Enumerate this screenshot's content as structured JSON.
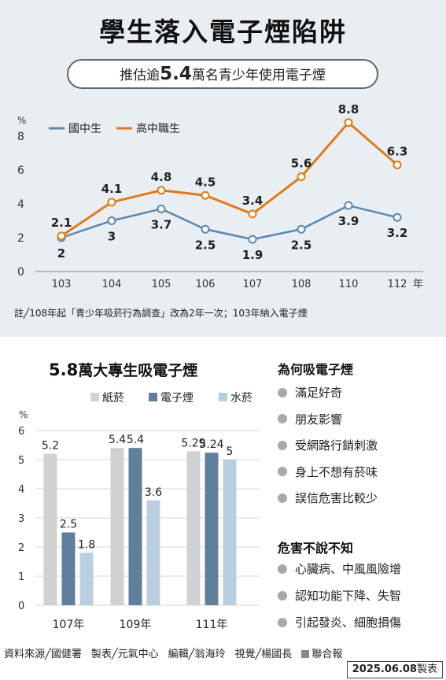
{
  "title": "學生落入電子煙陷阱",
  "subtitle": {
    "prefix": "推估逾",
    "number": "5.4",
    "suffix": "萬名青少年使用電子煙"
  },
  "note": "註╱108年起「青少年吸菸行為調查」改為2年一次；103年納入電子煙",
  "colors": {
    "junior": "#5b88b3",
    "senior": "#e07b1b",
    "paper_cig": "#cfd1d3",
    "e_cig": "#5f7f9c",
    "hookah": "#b9cfe0"
  },
  "chart_data": [
    {
      "type": "line",
      "unit_label": "%",
      "categories": [
        "103",
        "104",
        "105",
        "106",
        "107",
        "108",
        "110",
        "112"
      ],
      "x_suffix": "年",
      "ylim": [
        0,
        8
      ],
      "yticks": [
        0,
        2,
        4,
        6,
        8
      ],
      "grid": false,
      "legend_position": "top-left",
      "series": [
        {
          "name": "國中生",
          "values": [
            2,
            3,
            3.7,
            2.5,
            1.9,
            2.5,
            3.9,
            3.2
          ],
          "labels": [
            "2",
            "3",
            "3.7",
            "2.5",
            "1.9",
            "2.5",
            "3.9",
            "3.2"
          ]
        },
        {
          "name": "高中職生",
          "values": [
            2.1,
            4.1,
            4.8,
            4.5,
            3.4,
            5.6,
            8.8,
            6.3
          ],
          "labels": [
            "2.1",
            "4.1",
            "4.8",
            "4.5",
            "3.4",
            "5.6",
            "8.8",
            "6.3"
          ]
        }
      ]
    },
    {
      "type": "bar",
      "title": {
        "number": "5.8",
        "text": "萬大專生吸電子煙"
      },
      "unit_label": "%",
      "categories": [
        "107年",
        "109年",
        "111年"
      ],
      "ylim": [
        0,
        6
      ],
      "yticks": [
        0,
        1,
        2,
        3,
        4,
        5,
        6
      ],
      "grid": true,
      "legend_position": "top",
      "series": [
        {
          "name": "紙菸",
          "values": [
            5.2,
            5.4,
            5.29
          ],
          "labels": [
            "5.2",
            "5.4",
            "5.29"
          ]
        },
        {
          "name": "電子煙",
          "values": [
            2.5,
            5.4,
            5.24
          ],
          "labels": [
            "2.5",
            "5.4",
            "5.24"
          ]
        },
        {
          "name": "水菸",
          "values": [
            1.8,
            3.6,
            5
          ],
          "labels": [
            "1.8",
            "3.6",
            "5"
          ]
        }
      ]
    }
  ],
  "why": {
    "heading": "為何吸電子煙",
    "items": [
      "滿足好奇",
      "朋友影響",
      "受網路行銷刺激",
      "身上不想有菸味",
      "誤信危害比較少"
    ]
  },
  "harm": {
    "heading": "危害不說不知",
    "items": [
      "心臟病、中風風險增",
      "認知功能下降、失智",
      "引起發炎、細胞損傷"
    ]
  },
  "credits": {
    "source": "資料來源╱國健署",
    "maker": "製表╱元氣中心",
    "editor": "編輯╱翁海玲",
    "visual": "視覺╱楊國長",
    "brand": "聯合報",
    "date": "2025.06.08",
    "date_suffix": "製表"
  }
}
